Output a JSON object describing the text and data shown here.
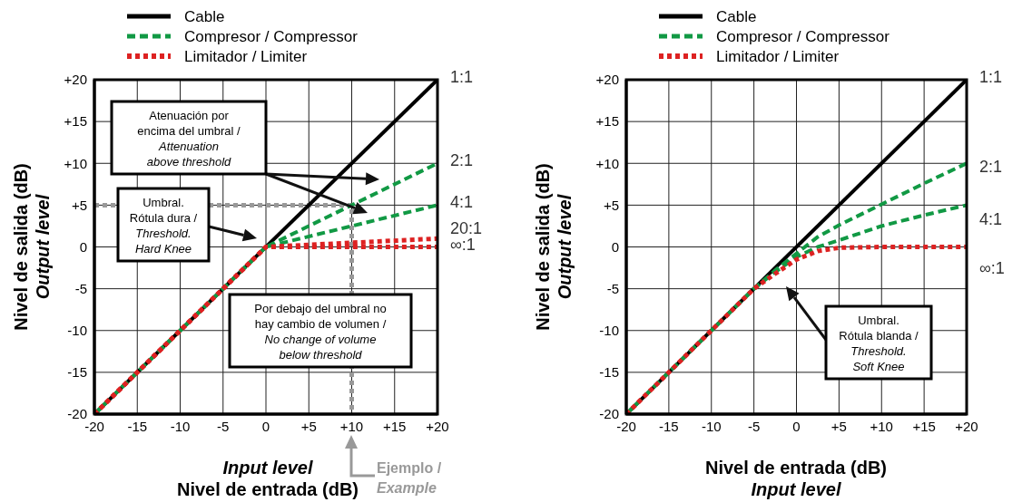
{
  "chart_data": [
    {
      "type": "line",
      "xlabel": "Input level\nNivel de entrada (dB)",
      "ylabel": "Nivel de salida (dB)\nOutput level",
      "xlim": [
        -20,
        20
      ],
      "ylim": [
        -20,
        20
      ],
      "xticks": [
        -20,
        -15,
        -10,
        -5,
        0,
        {
          "value": 5,
          "label": "+5"
        },
        {
          "value": 10,
          "label": "+10"
        },
        {
          "value": 15,
          "label": "+15"
        },
        {
          "value": 20,
          "label": "+20"
        }
      ],
      "yticks": [
        -20,
        -15,
        -10,
        -5,
        0,
        {
          "value": 5,
          "label": "+5"
        },
        {
          "value": 10,
          "label": "+10"
        },
        {
          "value": 15,
          "label": "+15"
        },
        {
          "value": 20,
          "label": "+20"
        }
      ],
      "grid": true,
      "legend": "top",
      "marker": "none",
      "series": [
        {
          "type": "line",
          "color": "#999999",
          "line_style": "dotted",
          "x": [
            -20,
            10,
            10
          ],
          "values": [
            5,
            5,
            -20
          ]
        },
        {
          "name": "Cable",
          "color": "#000000",
          "line_style": "solid",
          "x": [
            -20,
            20
          ],
          "values": [
            -20,
            20
          ]
        },
        {
          "name": "Compresor / Compressor",
          "color": "#119944",
          "line_style": "dashed",
          "x": [
            -20,
            0,
            20
          ],
          "values": [
            -20,
            0,
            10
          ]
        },
        {
          "color": "#119944",
          "line_style": "dashed",
          "x": [
            -20,
            0,
            20
          ],
          "values": [
            -20,
            0,
            5
          ]
        },
        {
          "name": "Limitador / Limiter",
          "color": "#dd2222",
          "line_style": "dotted",
          "x": [
            -20,
            0,
            20
          ],
          "values": [
            -20,
            0,
            1
          ]
        },
        {
          "color": "#dd2222",
          "line_style": "dotted",
          "x": [
            -20,
            0,
            20
          ],
          "values": [
            -20,
            0,
            0
          ]
        }
      ],
      "annotations": [
        "1:1",
        "2:1",
        "4:1",
        "20:1",
        "∞:1",
        "Atenuación por\nencima del umbral /\nAttenuation\nabove threshold",
        "Umbral.\nRótula dura /\nThreshold.\nHard Knee",
        "Por debajo del umbral no\nhay cambio de volumen /\nNo change of volume\nbelow threshold",
        "Ejemplo /\nExample"
      ]
    },
    {
      "type": "line",
      "xlabel": "Nivel de entrada (dB)\nInput level",
      "ylabel": "Nivel de salida (dB)\nOutput level",
      "xlim": [
        -20,
        20
      ],
      "ylim": [
        -20,
        20
      ],
      "xticks": [
        -20,
        -15,
        -10,
        -5,
        0,
        {
          "value": 5,
          "label": "+5"
        },
        {
          "value": 10,
          "label": "+10"
        },
        {
          "value": 15,
          "label": "+15"
        },
        {
          "value": 20,
          "label": "+20"
        }
      ],
      "yticks": [
        -20,
        -15,
        -10,
        -5,
        0,
        {
          "value": 5,
          "label": "+5"
        },
        {
          "value": 10,
          "label": "+10"
        },
        {
          "value": 15,
          "label": "+15"
        },
        {
          "value": 20,
          "label": "+20"
        }
      ],
      "grid": true,
      "legend": "top",
      "marker": "none",
      "series": [
        {
          "name": "Cable",
          "color": "#000000",
          "line_style": "solid",
          "x": [
            -20,
            20
          ],
          "values": [
            -20,
            20
          ]
        },
        {
          "name": "Compresor / Compressor",
          "color": "#119944",
          "line_style": "dashed",
          "x": [
            -20,
            -5,
            -2.5,
            0,
            2.5,
            5,
            10,
            15,
            20
          ],
          "values": [
            -20,
            -5,
            -2.8,
            -0.8,
            1.2,
            2.6,
            5.1,
            7.6,
            10
          ]
        },
        {
          "color": "#119944",
          "line_style": "dashed",
          "x": [
            -20,
            -5,
            -2.5,
            0,
            2.5,
            5,
            10,
            15,
            20
          ],
          "values": [
            -20,
            -5,
            -3,
            -1.2,
            0,
            0.8,
            2.5,
            3.8,
            5
          ]
        },
        {
          "name": "Limitador / Limiter",
          "color": "#dd2222",
          "line_style": "dotted",
          "x": [
            -20,
            -5,
            -2.5,
            0,
            2.5,
            5,
            10,
            20
          ],
          "values": [
            -20,
            -5,
            -3.2,
            -1.5,
            -0.5,
            -0.1,
            0,
            0
          ]
        }
      ],
      "annotations": [
        "1:1",
        "2:1",
        "4:1",
        "∞:1",
        "Umbral.\nRótula blanda /\nThreshold.\nSoft Knee"
      ]
    }
  ]
}
